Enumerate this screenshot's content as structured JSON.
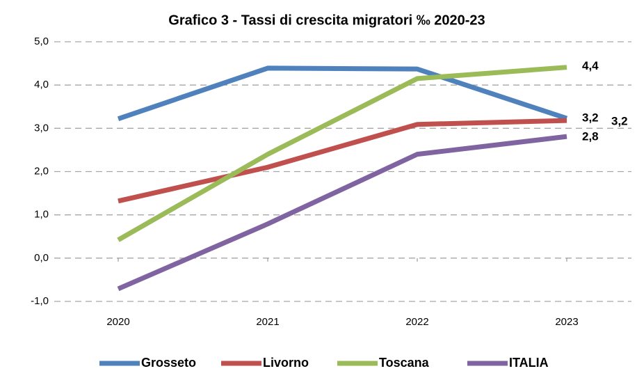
{
  "chart_data": {
    "type": "line",
    "title": "Grafico 3 - Tassi di crescita migratori ‰ 2020-23",
    "categories": [
      "2020",
      "2021",
      "2022",
      "2023"
    ],
    "series": [
      {
        "name": "Grosseto",
        "color": "#4f81bd",
        "label_color": "#2f5597",
        "values": [
          3.22,
          4.39,
          4.37,
          3.23
        ],
        "value_labels": [
          null,
          null,
          null,
          "3,2"
        ]
      },
      {
        "name": "Livorno",
        "color": "#c0504d",
        "label_color": "#c00000",
        "values": [
          1.32,
          2.1,
          3.09,
          3.18
        ],
        "value_labels": [
          null,
          null,
          null,
          "3,2"
        ]
      },
      {
        "name": "Toscana",
        "color": "#9bbb59",
        "label_color": "#4f6228",
        "values": [
          0.42,
          2.4,
          4.15,
          4.41
        ],
        "value_labels": [
          null,
          null,
          null,
          "4,4"
        ]
      },
      {
        "name": "ITALIA",
        "color": "#8064a2",
        "label_color": "#7030a0",
        "values": [
          -0.71,
          0.79,
          2.4,
          2.81
        ],
        "value_labels": [
          null,
          null,
          null,
          "2,8"
        ]
      }
    ],
    "ylim": [
      -1,
      5
    ],
    "yticks": [
      {
        "value": -1,
        "label": "-1,0"
      },
      {
        "value": 0,
        "label": "0,0"
      },
      {
        "value": 1,
        "label": "1,0"
      },
      {
        "value": 2,
        "label": "2,0"
      },
      {
        "value": 3,
        "label": "3,0"
      },
      {
        "value": 4,
        "label": "4,0"
      },
      {
        "value": 5,
        "label": "5,0"
      }
    ],
    "grid": true,
    "legend": "bottom"
  }
}
